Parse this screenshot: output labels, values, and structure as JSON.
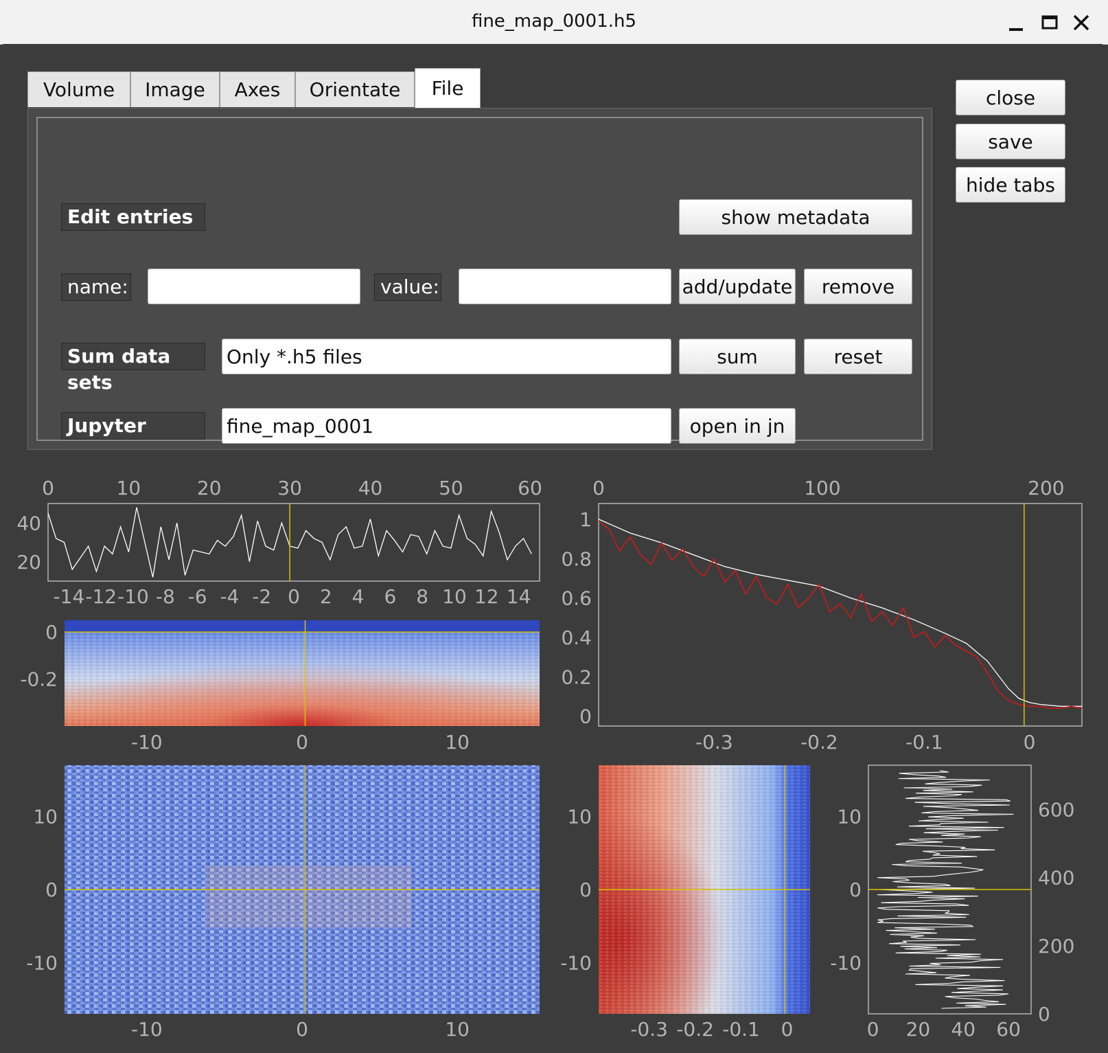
{
  "window": {
    "title": "fine_map_0001.h5",
    "controls": {
      "minimize": "minimize",
      "maximize": "maximize",
      "close": "close"
    }
  },
  "tabs": [
    {
      "label": "Volume"
    },
    {
      "label": "Image"
    },
    {
      "label": "Axes"
    },
    {
      "label": "Orientate"
    },
    {
      "label": "File",
      "active": true
    }
  ],
  "side_buttons": {
    "close": "close",
    "save": "save",
    "hide_tabs": "hide tabs"
  },
  "file_tab": {
    "edit_entries": {
      "label": "Edit entries",
      "show_metadata": "show metadata",
      "name_label": "name:",
      "name_value": "",
      "value_label": "value:",
      "value_value": "",
      "add_update": "add/update",
      "remove": "remove"
    },
    "sum": {
      "label": "Sum data sets",
      "value": "Only *.h5 files",
      "sum": "sum",
      "reset": "reset"
    },
    "jupyter": {
      "label": "Jupyter",
      "value": "fine_map_0001",
      "open": "open in jn"
    }
  },
  "colors": {
    "axis": "#b4b4b4",
    "plot_bg": "#3c3c3c",
    "cursor": "#d6c300",
    "trace": "#ffffff",
    "fit": "#cc1a1a"
  },
  "chart_data": [
    {
      "id": "top-left-line",
      "type": "line",
      "x_top_ticks": [
        "0",
        "10",
        "20",
        "30",
        "40",
        "50",
        "60"
      ],
      "x_bottom_ticks": [
        "-14",
        "-12",
        "-10",
        "-8",
        "-6",
        "-4",
        "-2",
        "0",
        "2",
        "4",
        "6",
        "8",
        "10",
        "12",
        "14"
      ],
      "y_ticks": [
        "20",
        "40"
      ],
      "xlim": [
        0,
        61
      ],
      "ylim": [
        10,
        50
      ],
      "cursor_x": 30,
      "values": [
        45,
        32,
        30,
        16,
        22,
        28,
        15,
        28,
        24,
        38,
        25,
        48,
        30,
        12,
        38,
        21,
        40,
        13,
        26,
        25,
        24,
        31,
        28,
        33,
        44,
        20,
        41,
        28,
        26,
        40,
        28,
        27,
        36,
        32,
        30,
        21,
        34,
        38,
        27,
        28,
        42,
        23,
        36,
        31,
        25,
        34,
        33,
        24,
        36,
        28,
        27,
        44,
        32,
        29,
        23,
        46,
        35,
        21,
        28,
        32,
        24
      ]
    },
    {
      "id": "top-right-line",
      "type": "line",
      "x_top_ticks": [
        "0",
        "100",
        "200"
      ],
      "x_bottom_ticks": [
        "-0.3",
        "-0.2",
        "-0.1",
        "0"
      ],
      "y_ticks": [
        "0",
        "0.2",
        "0.4",
        "0.6",
        "0.8",
        "1"
      ],
      "xlim": [
        -0.41,
        0.05
      ],
      "ylim": [
        -0.05,
        1.08
      ],
      "cursor_x": -0.005,
      "series": [
        {
          "name": "trace",
          "x": [
            -0.41,
            -0.38,
            -0.35,
            -0.32,
            -0.29,
            -0.26,
            -0.23,
            -0.2,
            -0.17,
            -0.14,
            -0.11,
            -0.08,
            -0.06,
            -0.04,
            -0.02,
            -0.01,
            0,
            0.01,
            0.03,
            0.05
          ],
          "values": [
            1.0,
            0.93,
            0.88,
            0.82,
            0.76,
            0.72,
            0.69,
            0.66,
            0.6,
            0.55,
            0.49,
            0.42,
            0.37,
            0.28,
            0.14,
            0.09,
            0.07,
            0.06,
            0.05,
            0.05
          ]
        },
        {
          "name": "fit",
          "x": [
            -0.41,
            -0.4,
            -0.39,
            -0.38,
            -0.37,
            -0.36,
            -0.35,
            -0.34,
            -0.33,
            -0.32,
            -0.31,
            -0.3,
            -0.29,
            -0.28,
            -0.27,
            -0.26,
            -0.25,
            -0.24,
            -0.23,
            -0.22,
            -0.21,
            -0.2,
            -0.19,
            -0.18,
            -0.17,
            -0.16,
            -0.15,
            -0.14,
            -0.13,
            -0.12,
            -0.11,
            -0.1,
            -0.09,
            -0.08,
            -0.07,
            -0.06,
            -0.05,
            -0.04,
            -0.03,
            -0.02,
            -0.01,
            0,
            0.01,
            0.02,
            0.03,
            0.04,
            0.05
          ],
          "values": [
            0.99,
            0.95,
            0.84,
            0.91,
            0.82,
            0.77,
            0.88,
            0.79,
            0.85,
            0.76,
            0.71,
            0.8,
            0.68,
            0.74,
            0.62,
            0.71,
            0.6,
            0.57,
            0.67,
            0.55,
            0.6,
            0.67,
            0.53,
            0.57,
            0.5,
            0.62,
            0.48,
            0.53,
            0.46,
            0.55,
            0.4,
            0.43,
            0.35,
            0.41,
            0.36,
            0.33,
            0.3,
            0.22,
            0.13,
            0.08,
            0.06,
            0.05,
            0.05,
            0.04,
            0.04,
            0.05,
            0.04
          ]
        }
      ]
    },
    {
      "id": "mid-left-heatmap",
      "type": "heatmap",
      "x_ticks": [
        "-10",
        "0",
        "10"
      ],
      "y_ticks": [
        "0",
        "-0.2"
      ],
      "xlim": [
        -15.3,
        15.3
      ],
      "ylim": [
        -0.4,
        0.05
      ],
      "cursor": {
        "x": 0.2,
        "y": 0
      }
    },
    {
      "id": "bottom-left-heatmap",
      "type": "heatmap",
      "x_ticks": [
        "-10",
        "0",
        "10"
      ],
      "y_ticks": [
        "10",
        "0",
        "-10"
      ],
      "xlim": [
        -15.3,
        15.3
      ],
      "ylim": [
        -17,
        17
      ],
      "cursor": {
        "x": 0.2,
        "y": 0
      }
    },
    {
      "id": "bottom-mid-heatmap",
      "type": "heatmap",
      "x_ticks": [
        "-0.3",
        "-0.2",
        "-0.1",
        "0"
      ],
      "y_ticks": [
        "10",
        "0",
        "-10"
      ],
      "xlim": [
        -0.41,
        0.05
      ],
      "ylim": [
        -17,
        17
      ],
      "cursor": {
        "x": -0.005,
        "y": 0
      }
    },
    {
      "id": "bottom-right-profile",
      "type": "line",
      "x_ticks": [
        "0",
        "20",
        "40",
        "60"
      ],
      "y_left_ticks": [
        "10",
        "0",
        "-10"
      ],
      "y_right_ticks": [
        "0",
        "200",
        "400",
        "600"
      ],
      "xlim": [
        -2,
        70
      ],
      "ylim": [
        -17,
        17
      ],
      "cursor_y": 0
    }
  ]
}
